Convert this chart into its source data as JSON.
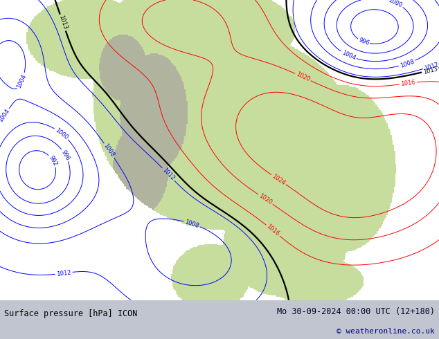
{
  "title_left": "Surface pressure [hPa] ICON",
  "title_right": "Mo 30-09-2024 00:00 UTC (12+180)",
  "copyright": "© weatheronline.co.uk",
  "bg_color": "#c8cdd8",
  "map_bg_color": "#ffffff",
  "sea_color": "#ffffff",
  "land_color_green": "#c8dda8",
  "land_color_gray": "#b0b0a0",
  "label_color_left": "#000000",
  "label_color_right": "#000020",
  "copyright_color": "#000080",
  "bottom_bar_color": "#c0c5d0",
  "fig_width": 6.34,
  "fig_height": 4.9,
  "dpi": 100,
  "font_size_labels": 8.5,
  "font_size_copyright": 8
}
